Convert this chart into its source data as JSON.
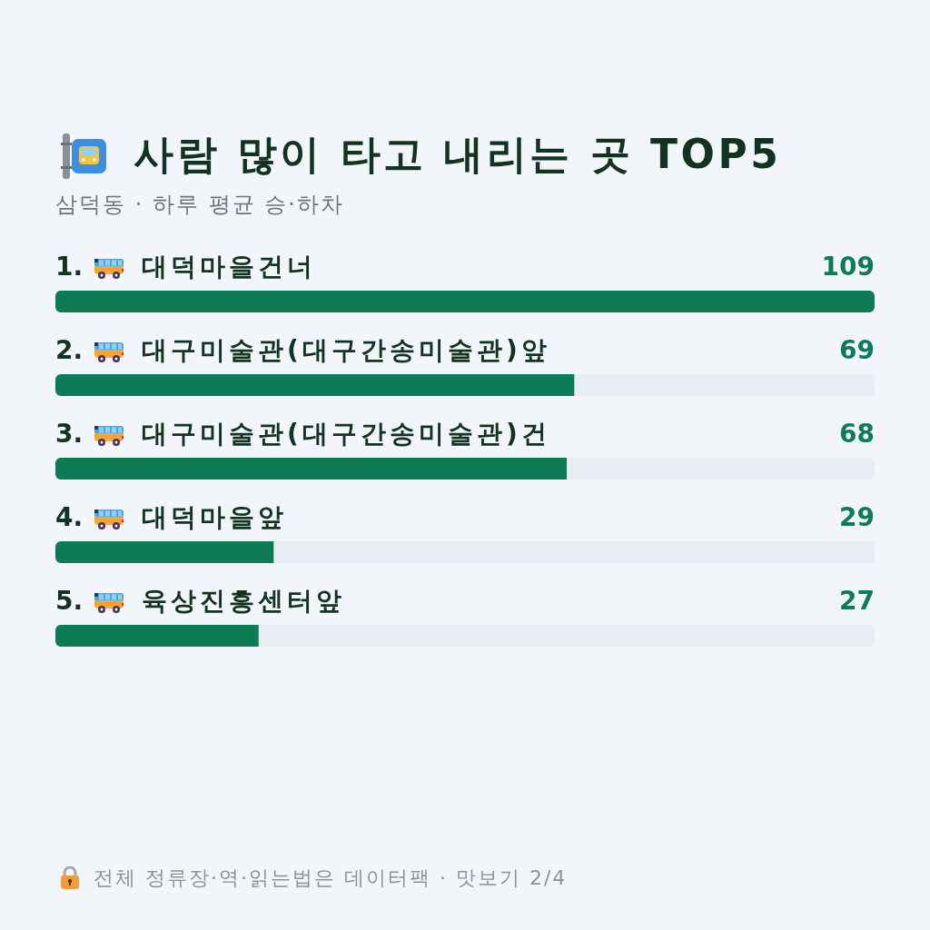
{
  "chart_data": {
    "type": "bar",
    "orientation": "horizontal",
    "title": "사람 많이 타고 내리는 곳 TOP5",
    "subtitle": "삼덕동 · 하루 평균 승·하차",
    "categories": [
      "1. 대덕마을건너",
      "2. 대구미술관(대구간송미술관)앞",
      "3. 대구미술관(대구간송미술관)건",
      "4. 대덕마을앞",
      "5. 육상진흥센터앞"
    ],
    "values": [
      109,
      69,
      68,
      29,
      27
    ],
    "color": "#0b7c53",
    "xlim": [
      0,
      109
    ],
    "data_labels": true,
    "tick_labels": "y",
    "annotations": [
      "전체 정류장·역·읽는법은 데이터팩 · 맛보기 2/4"
    ]
  }
}
